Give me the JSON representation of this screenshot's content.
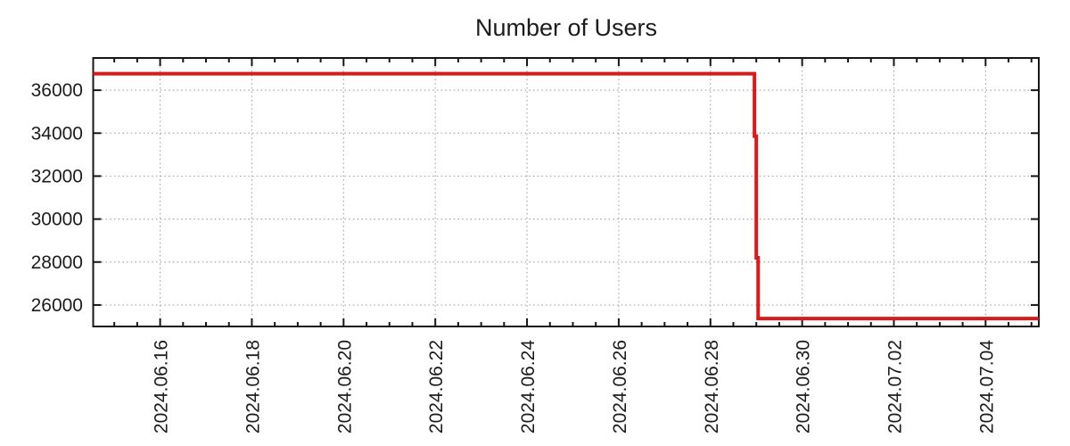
{
  "window": {
    "background": "#ffffff"
  },
  "chart_data": {
    "type": "line",
    "line_style": "steps",
    "title": "Number of Users",
    "xlabel": "",
    "ylabel": "",
    "grid": true,
    "legend": false,
    "colors": {
      "line": "#d91a1a",
      "grid": "#a6a6a6",
      "axis": "#161616",
      "text": "#1c1c1c",
      "background": "#ffffff"
    },
    "y_axis": {
      "ticks": [
        26000,
        28000,
        30000,
        32000,
        34000,
        36000
      ],
      "tick_labels": [
        "26000",
        "28000",
        "30000",
        "32000",
        "34000",
        "36000"
      ],
      "range": [
        25000,
        37500
      ]
    },
    "x_axis": {
      "note": "day offsets relative to 2024.06.16 00:00",
      "range_days": [
        -1.46,
        19.16
      ],
      "minor_tick_step_days": 0.5,
      "major_ticks": [
        {
          "day": 0,
          "label": "2024.06.16"
        },
        {
          "day": 2,
          "label": "2024.06.18"
        },
        {
          "day": 4,
          "label": "2024.06.20"
        },
        {
          "day": 6,
          "label": "2024.06.22"
        },
        {
          "day": 8,
          "label": "2024.06.24"
        },
        {
          "day": 10,
          "label": "2024.06.26"
        },
        {
          "day": 12,
          "label": "2024.06.28"
        },
        {
          "day": 14,
          "label": "2024.06.30"
        },
        {
          "day": 16,
          "label": "2024.07.02"
        },
        {
          "day": 18,
          "label": "2024.07.04"
        }
      ]
    },
    "series": [
      {
        "name": "users",
        "color": "#d91a1a",
        "points": [
          {
            "time": "series start (~2024.06.14 13:00)",
            "day": -1.46,
            "value": 36770
          },
          {
            "time": "2024.06.28 ~23:00",
            "day": 12.96,
            "value": 33860
          },
          {
            "time": "2024.06.29 ~00:00",
            "day": 13.0,
            "value": 28200
          },
          {
            "time": "2024.06.29 ~01:00",
            "day": 13.04,
            "value": 25370
          },
          {
            "time": "series end (~2024.07.05 04:00)",
            "day": 19.16,
            "value": 25370
          }
        ]
      }
    ]
  }
}
